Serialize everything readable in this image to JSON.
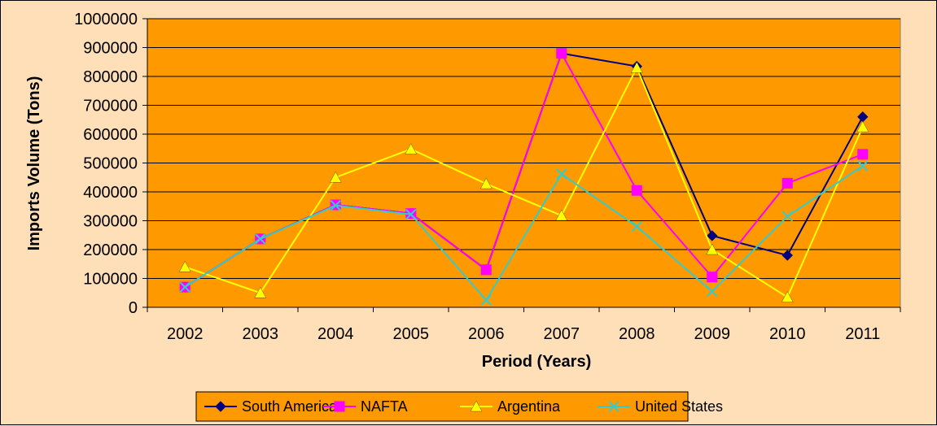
{
  "chart_data": {
    "type": "line",
    "title": "",
    "xlabel": "Period (Years)",
    "ylabel": "Imports Volume (Tons)",
    "categories": [
      "2002",
      "2003",
      "2004",
      "2005",
      "2006",
      "2007",
      "2008",
      "2009",
      "2010",
      "2011"
    ],
    "ylim": [
      0,
      1000000
    ],
    "yticks": [
      0,
      100000,
      200000,
      300000,
      400000,
      500000,
      600000,
      700000,
      800000,
      900000,
      1000000
    ],
    "ytick_labels": [
      "0",
      "100000",
      "200000",
      "300000",
      "400000",
      "500000",
      "600000",
      "700000",
      "800000",
      "900000",
      "1000000"
    ],
    "grid": true,
    "legend_position": "bottom",
    "plot_background": "#FF9900",
    "page_background": "#FFDFB7",
    "series": [
      {
        "name": "South America",
        "color": "#000080",
        "marker": "diamond",
        "values": [
          70000,
          237000,
          355000,
          325000,
          130000,
          880000,
          835000,
          248000,
          180000,
          660000
        ]
      },
      {
        "name": "NAFTA",
        "color": "#FF00FF",
        "marker": "square",
        "values": [
          70000,
          237000,
          355000,
          325000,
          130000,
          880000,
          405000,
          105000,
          430000,
          530000
        ]
      },
      {
        "name": "Argentina",
        "color": "#FFFF00",
        "marker": "triangle",
        "values": [
          140000,
          50000,
          450000,
          548000,
          428000,
          318000,
          830000,
          200000,
          35000,
          625000
        ]
      },
      {
        "name": "United States",
        "color": "#33CCCC",
        "marker": "x",
        "values": [
          70000,
          237000,
          353000,
          322000,
          25000,
          462000,
          280000,
          55000,
          315000,
          490000
        ]
      }
    ]
  }
}
